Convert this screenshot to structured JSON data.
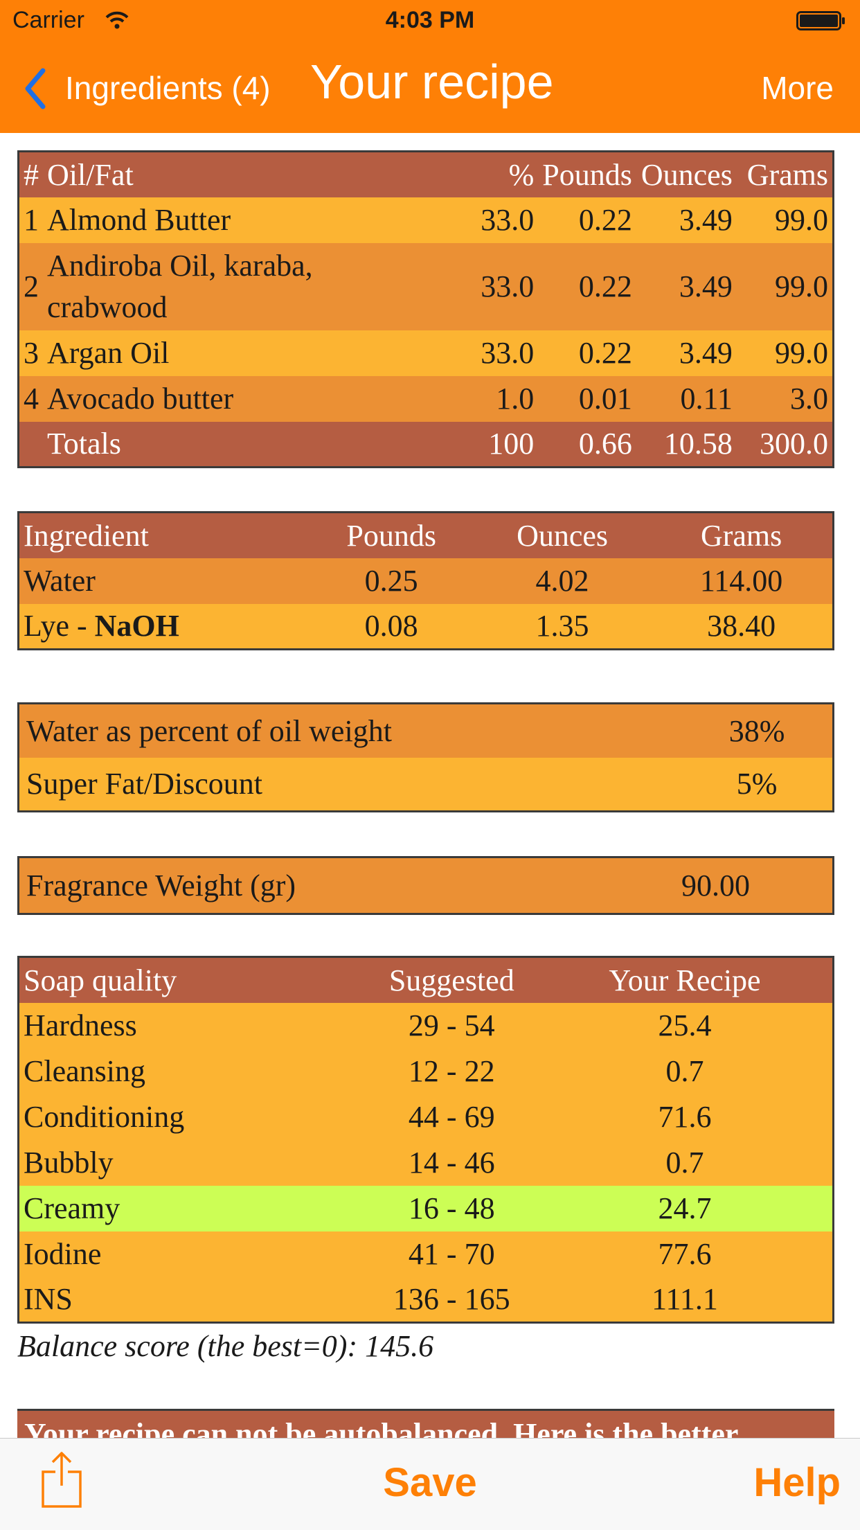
{
  "status": {
    "carrier": "Carrier",
    "time": "4:03 PM"
  },
  "nav": {
    "back_label": "Ingredients (4)",
    "title": "Your recipe",
    "more_label": "More"
  },
  "oils": {
    "headers": {
      "num": "#",
      "name": "Oil/Fat",
      "pct": "%",
      "pounds": "Pounds",
      "ounces": "Ounces",
      "grams": "Grams"
    },
    "rows": [
      {
        "num": "1",
        "name": "Almond Butter",
        "pct": "33.0",
        "pounds": "0.22",
        "ounces": "3.49",
        "grams": "99.0"
      },
      {
        "num": "2",
        "name_line1": "Andiroba Oil, karaba,",
        "name_line2": "crabwood",
        "pct": "33.0",
        "pounds": "0.22",
        "ounces": "3.49",
        "grams": "99.0"
      },
      {
        "num": "3",
        "name": "Argan Oil",
        "pct": "33.0",
        "pounds": "0.22",
        "ounces": "3.49",
        "grams": "99.0"
      },
      {
        "num": "4",
        "name": "Avocado butter",
        "pct": "1.0",
        "pounds": "0.01",
        "ounces": "0.11",
        "grams": "3.0"
      }
    ],
    "totals": {
      "label": "Totals",
      "pct": "100",
      "pounds": "0.66",
      "ounces": "10.58",
      "grams": "300.0"
    }
  },
  "lye": {
    "headers": {
      "ingredient": "Ingredient",
      "pounds": "Pounds",
      "ounces": "Ounces",
      "grams": "Grams"
    },
    "water": {
      "name": "Water",
      "pounds": "0.25",
      "ounces": "4.02",
      "grams": "114.00"
    },
    "lye": {
      "prefix": "Lye - ",
      "type": "NaOH",
      "pounds": "0.08",
      "ounces": "1.35",
      "grams": "38.40"
    }
  },
  "settings": {
    "water_pct": {
      "label": "Water as percent of oil weight",
      "value": "38%"
    },
    "superfat": {
      "label": "Super Fat/Discount",
      "value": "5%"
    }
  },
  "fragrance": {
    "label": "Fragrance Weight (gr)",
    "value": "90.00"
  },
  "quality": {
    "headers": {
      "quality": "Soap quality",
      "suggested": "Suggested",
      "recipe": "Your Recipe"
    },
    "rows": [
      {
        "name": "Hardness",
        "suggested": "29 - 54",
        "recipe": "25.4"
      },
      {
        "name": "Cleansing",
        "suggested": "12 - 22",
        "recipe": "0.7"
      },
      {
        "name": "Conditioning",
        "suggested": "44 - 69",
        "recipe": "71.6"
      },
      {
        "name": "Bubbly",
        "suggested": "14 - 46",
        "recipe": "0.7"
      },
      {
        "name": "Creamy",
        "suggested": "16 - 48",
        "recipe": "24.7"
      },
      {
        "name": "Iodine",
        "suggested": "41 - 70",
        "recipe": "77.6"
      },
      {
        "name": "INS",
        "suggested": "136 - 165",
        "recipe": "111.1"
      }
    ],
    "balance_label": "Balance score (the best=0): 145.6"
  },
  "notice": "Your recipe can not be autobalanced. Here is the better",
  "toolbar": {
    "save_label": "Save",
    "help_label": "Help"
  },
  "colors": {
    "accent": "#fe8006",
    "header_row": "#b55d42",
    "row_light": "#fcb432",
    "row_dark": "#eb9034",
    "highlight": "#ccfe55"
  }
}
